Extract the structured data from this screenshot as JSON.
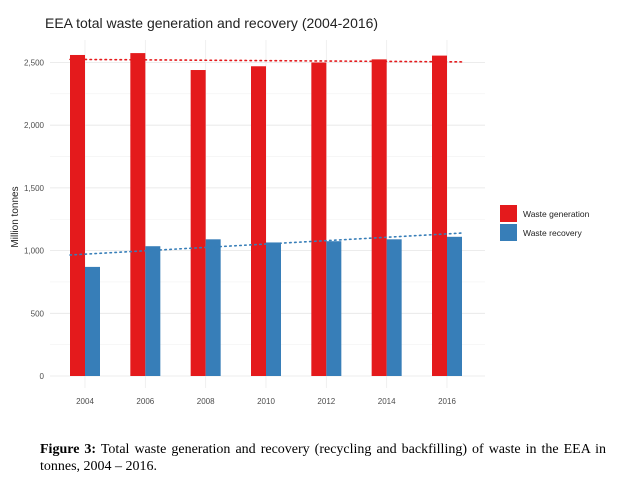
{
  "chart_data": {
    "type": "bar",
    "title": "EEA total waste generation and recovery (2004-2016)",
    "xlabel": "",
    "ylabel": "Million tonnes",
    "categories": [
      "2004",
      "2006",
      "2008",
      "2010",
      "2012",
      "2014",
      "2016"
    ],
    "series": [
      {
        "name": "Waste generation",
        "color": "#e41a1c",
        "values": [
          2560,
          2575,
          2440,
          2470,
          2500,
          2525,
          2555
        ],
        "trend": [
          2525,
          2505
        ]
      },
      {
        "name": "Waste recovery",
        "color": "#377eb8",
        "values": [
          870,
          1035,
          1090,
          1065,
          1075,
          1090,
          1110
        ],
        "trend": [
          965,
          1140
        ]
      }
    ],
    "ylim": [
      0,
      2750
    ],
    "yticks": [
      0,
      500,
      1000,
      1500,
      2000,
      2500
    ],
    "ytick_labels": [
      "0",
      "500",
      "1,000",
      "1,500",
      "2,000",
      "2,500"
    ],
    "grid": true,
    "legend_position": "right",
    "trendlines": true
  },
  "caption": {
    "label": "Figure 3:",
    "text": " Total waste generation and recovery (recycling and backfilling) of waste in the EEA in tonnes, 2004 – 2016."
  }
}
